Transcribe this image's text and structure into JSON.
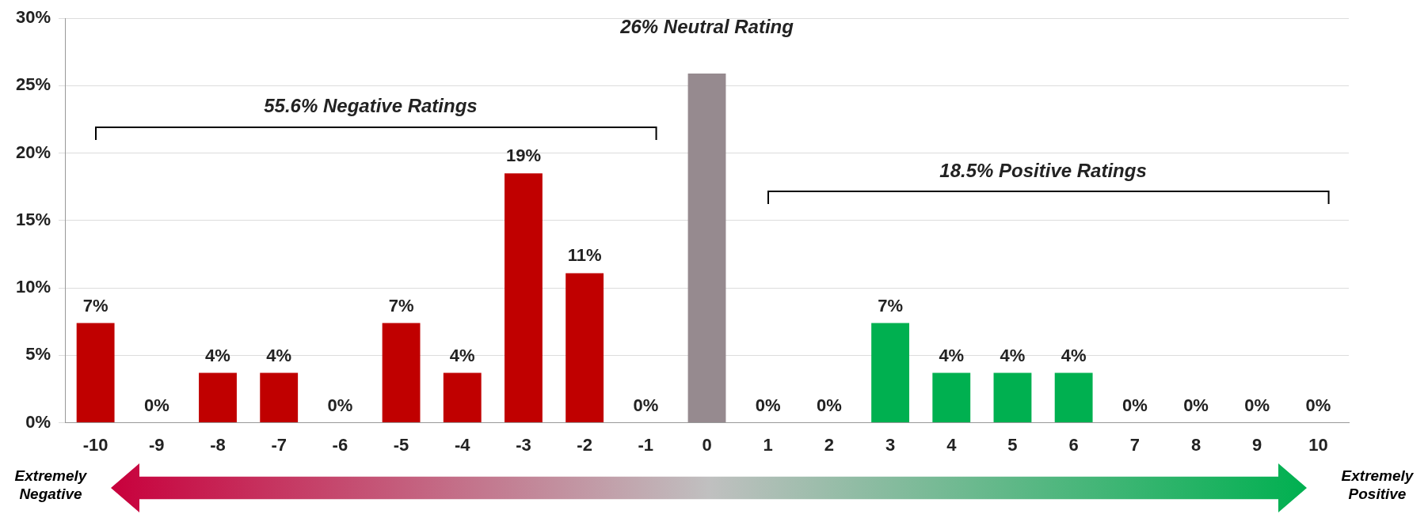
{
  "chart_data": {
    "type": "bar",
    "categories": [
      "-10",
      "-9",
      "-8",
      "-7",
      "-6",
      "-5",
      "-4",
      "-3",
      "-2",
      "-1",
      "0",
      "1",
      "2",
      "3",
      "4",
      "5",
      "6",
      "7",
      "8",
      "9",
      "10"
    ],
    "values": [
      7.4,
      0,
      3.7,
      3.7,
      0,
      7.4,
      3.7,
      18.5,
      11.1,
      0,
      25.9,
      0,
      0,
      7.4,
      3.7,
      3.7,
      3.7,
      0,
      0,
      0,
      0
    ],
    "value_labels": [
      "7%",
      "0%",
      "4%",
      "4%",
      "0%",
      "7%",
      "4%",
      "19%",
      "11%",
      "0%",
      null,
      "0%",
      "0%",
      "7%",
      "4%",
      "4%",
      "4%",
      "0%",
      "0%",
      "0%",
      "0%"
    ],
    "colors": [
      "#c00000",
      "#c00000",
      "#c00000",
      "#c00000",
      "#c00000",
      "#c00000",
      "#c00000",
      "#c00000",
      "#c00000",
      "#c00000",
      "#968a8f",
      "#00b050",
      "#00b050",
      "#00b050",
      "#00b050",
      "#00b050",
      "#00b050",
      "#00b050",
      "#00b050",
      "#00b050",
      "#00b050"
    ],
    "ylim": [
      0,
      30
    ],
    "yticks": [
      {
        "value": 0,
        "label": "0%"
      },
      {
        "value": 5,
        "label": "5%"
      },
      {
        "value": 10,
        "label": "10%"
      },
      {
        "value": 15,
        "label": "15%"
      },
      {
        "value": 20,
        "label": "20%"
      },
      {
        "value": 25,
        "label": "25%"
      },
      {
        "value": 30,
        "label": "30%"
      }
    ],
    "grid": "y",
    "legend": false,
    "annotations": [
      "55.6% Negative Ratings",
      "26% Neutral Rating",
      "18.5% Positive Ratings",
      "Extremely Negative",
      "Extremely Positive"
    ]
  }
}
